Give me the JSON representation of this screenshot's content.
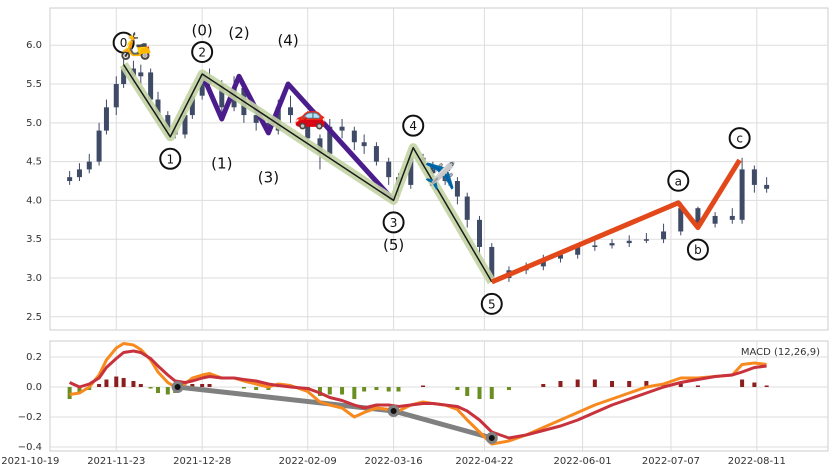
{
  "chart_data": [
    {
      "type": "candlestick",
      "x": [
        "2021-11-04",
        "2021-11-08",
        "2021-11-12",
        "2021-11-16",
        "2021-11-19",
        "2021-11-23",
        "2021-11-26",
        "2021-11-30",
        "2021-12-03",
        "2021-12-07",
        "2021-12-10",
        "2021-12-14",
        "2021-12-17",
        "2021-12-21",
        "2021-12-24",
        "2021-12-28",
        "2021-12-31",
        "2022-01-05",
        "2022-01-10",
        "2022-01-14",
        "2022-01-19",
        "2022-01-24",
        "2022-01-28",
        "2022-02-02",
        "2022-02-09",
        "2022-02-14",
        "2022-02-18",
        "2022-02-23",
        "2022-02-28",
        "2022-03-04",
        "2022-03-09",
        "2022-03-14",
        "2022-03-18",
        "2022-03-23",
        "2022-03-28",
        "2022-04-01",
        "2022-04-06",
        "2022-04-11",
        "2022-04-15",
        "2022-04-20",
        "2022-04-25",
        "2022-05-02",
        "2022-05-09",
        "2022-05-16",
        "2022-05-23",
        "2022-05-30",
        "2022-06-06",
        "2022-06-13",
        "2022-06-20",
        "2022-06-27",
        "2022-07-04",
        "2022-07-11",
        "2022-07-18",
        "2022-07-25",
        "2022-08-01",
        "2022-08-05",
        "2022-08-10",
        "2022-08-15"
      ],
      "open": [
        4.25,
        4.3,
        4.4,
        4.5,
        4.9,
        5.2,
        5.5,
        5.7,
        5.6,
        5.65,
        5.3,
        5.1,
        4.9,
        4.85,
        5.1,
        5.35,
        5.55,
        5.5,
        5.2,
        5.45,
        5.1,
        5.0,
        4.9,
        5.2,
        5.1,
        4.8,
        4.6,
        4.95,
        4.9,
        4.75,
        4.7,
        4.5,
        4.3,
        4.2,
        4.55,
        4.45,
        4.35,
        4.25,
        4.05,
        3.75,
        3.4,
        3.0,
        3.1,
        3.15,
        3.25,
        3.3,
        3.4,
        3.42,
        3.45,
        3.48,
        3.5,
        3.6,
        3.9,
        3.7,
        3.8,
        3.75,
        4.4,
        4.2
      ],
      "high": [
        4.38,
        4.48,
        4.6,
        5.0,
        5.3,
        5.6,
        5.9,
        5.8,
        5.75,
        5.7,
        5.4,
        5.15,
        5.0,
        5.15,
        5.4,
        5.65,
        5.7,
        5.55,
        5.6,
        5.5,
        5.15,
        5.05,
        5.3,
        5.35,
        5.15,
        4.85,
        5.05,
        5.05,
        4.95,
        4.85,
        4.75,
        4.55,
        4.35,
        4.65,
        4.6,
        4.5,
        4.4,
        4.3,
        4.1,
        3.8,
        3.45,
        3.15,
        3.2,
        3.3,
        3.35,
        3.45,
        3.48,
        3.5,
        3.55,
        3.58,
        3.7,
        3.98,
        3.92,
        3.85,
        3.9,
        4.55,
        4.45,
        4.3
      ],
      "low": [
        4.2,
        4.25,
        4.35,
        4.45,
        4.85,
        5.1,
        5.45,
        5.5,
        5.5,
        5.25,
        5.0,
        4.85,
        4.8,
        4.8,
        5.05,
        5.3,
        5.45,
        5.05,
        5.15,
        5.0,
        4.9,
        4.85,
        4.85,
        5.0,
        4.7,
        4.4,
        4.55,
        4.8,
        4.65,
        4.6,
        4.45,
        4.2,
        4.05,
        4.15,
        4.4,
        4.3,
        4.2,
        3.95,
        3.65,
        3.3,
        2.95,
        2.95,
        3.05,
        3.1,
        3.2,
        3.25,
        3.35,
        3.38,
        3.4,
        3.45,
        3.45,
        3.55,
        3.65,
        3.65,
        3.7,
        3.7,
        4.1,
        4.1
      ],
      "close": [
        4.3,
        4.4,
        4.5,
        4.9,
        5.2,
        5.5,
        5.7,
        5.6,
        5.65,
        5.3,
        5.1,
        4.9,
        4.85,
        5.1,
        5.35,
        5.55,
        5.5,
        5.2,
        5.45,
        5.1,
        5.0,
        4.9,
        5.2,
        5.1,
        4.8,
        4.6,
        4.95,
        4.9,
        4.75,
        4.7,
        4.5,
        4.3,
        4.2,
        4.55,
        4.45,
        4.35,
        4.25,
        4.05,
        3.75,
        3.4,
        3.0,
        3.1,
        3.15,
        3.25,
        3.3,
        3.4,
        3.42,
        3.45,
        3.48,
        3.5,
        3.6,
        3.9,
        3.7,
        3.8,
        3.75,
        4.4,
        4.2,
        4.15
      ],
      "color": "#3f4a66",
      "ylim": [
        2.33,
        6.48
      ],
      "yticks": [
        2.5,
        {
          "value": 3.0,
          "label": "3.0"
        },
        3.5,
        {
          "value": 4.0,
          "label": "4.0"
        },
        4.5,
        {
          "value": 5.0,
          "label": "5.0"
        },
        5.5,
        {
          "value": 6.0,
          "label": "6.0"
        }
      ],
      "grid": true,
      "waves": [
        {
          "color": "#4b1d8c",
          "x": [
            "2021-12-28",
            "2022-01-05",
            "2022-01-12",
            "2022-01-24",
            "2022-02-01",
            "2022-03-16"
          ],
          "y": [
            5.63,
            5.05,
            5.6,
            4.87,
            5.5,
            4.0
          ],
          "labels": [
            "(0)",
            "(1)",
            "(2)",
            "(3)",
            "(4)",
            "(5)"
          ],
          "circled": false
        },
        {
          "color": "#1a1a1a",
          "halo": "#c3d3a4",
          "x": [
            "2021-11-26",
            "2021-12-15",
            "2021-12-28",
            "2022-03-16",
            "2022-03-24",
            "2022-04-25"
          ],
          "y": [
            5.75,
            4.82,
            5.63,
            4.0,
            4.68,
            2.95
          ],
          "labels": [
            "0",
            "1",
            "2",
            "3",
            "4",
            "5"
          ],
          "circled": true
        },
        {
          "color": "#e2481a",
          "x": [
            "2022-04-25",
            "2022-07-10",
            "2022-07-18",
            "2022-08-04"
          ],
          "y": [
            2.95,
            3.97,
            3.65,
            4.52
          ],
          "labels": [
            null,
            "a",
            "b",
            "c"
          ],
          "circled": true
        }
      ],
      "annotations": [
        {
          "text": "🛵",
          "x": "2021-12-01",
          "y": 5.98
        },
        {
          "text": "🚗",
          "x": "2022-02-10",
          "y": 5.08
        },
        {
          "text": "✈️",
          "x": "2022-04-04",
          "y": 4.3
        }
      ]
    },
    {
      "type": "macd",
      "title": "MACD (12,26,9)",
      "series": [
        {
          "color": "#f7891f",
          "values": [
            -0.05,
            -0.04,
            0.0,
            0.08,
            0.18,
            0.26,
            0.29,
            0.28,
            0.25,
            0.18,
            0.1,
            0.03,
            0.0,
            0.02,
            0.06,
            0.08,
            0.09,
            0.06,
            0.06,
            0.04,
            0.02,
            0.0,
            0.02,
            0.01,
            -0.03,
            -0.1,
            -0.12,
            -0.14,
            -0.2,
            -0.17,
            -0.14,
            -0.15,
            -0.16,
            -0.12,
            -0.1,
            -0.11,
            -0.12,
            -0.15,
            -0.22,
            -0.3,
            -0.38,
            -0.36,
            -0.32,
            -0.27,
            -0.22,
            -0.17,
            -0.12,
            -0.08,
            -0.04,
            0.0,
            0.02,
            0.06,
            0.06,
            0.07,
            0.08,
            0.15,
            0.16,
            0.15
          ]
        },
        {
          "color": "#c8323c",
          "values": [
            0.03,
            0.0,
            0.02,
            0.06,
            0.13,
            0.19,
            0.23,
            0.24,
            0.23,
            0.19,
            0.14,
            0.08,
            0.04,
            0.03,
            0.04,
            0.06,
            0.07,
            0.06,
            0.06,
            0.05,
            0.04,
            0.02,
            0.01,
            0.0,
            -0.01,
            -0.04,
            -0.07,
            -0.09,
            -0.12,
            -0.14,
            -0.12,
            -0.12,
            -0.13,
            -0.12,
            -0.11,
            -0.11,
            -0.12,
            -0.13,
            -0.16,
            -0.22,
            -0.3,
            -0.34,
            -0.32,
            -0.29,
            -0.26,
            -0.22,
            -0.17,
            -0.12,
            -0.08,
            -0.04,
            0.0,
            0.03,
            0.05,
            0.07,
            0.08,
            0.1,
            0.13,
            0.14
          ]
        }
      ],
      "histogram": {
        "pos_color": "#8b1e1e",
        "neg_color": "#6b8e23",
        "values": [
          -0.08,
          -0.04,
          -0.02,
          0.02,
          0.05,
          0.07,
          0.06,
          0.04,
          0.02,
          -0.01,
          -0.04,
          -0.05,
          -0.04,
          -0.01,
          0.02,
          0.02,
          0.02,
          0.0,
          0.0,
          -0.01,
          -0.02,
          -0.02,
          0.01,
          0.01,
          -0.02,
          -0.06,
          -0.05,
          -0.05,
          -0.08,
          -0.03,
          -0.02,
          -0.03,
          -0.03,
          0.0,
          0.01,
          0.0,
          0.0,
          -0.02,
          -0.06,
          -0.08,
          -0.08,
          -0.02,
          0.0,
          0.02,
          0.04,
          0.05,
          0.05,
          0.04,
          0.04,
          0.04,
          0.02,
          0.03,
          0.01,
          0.0,
          0.0,
          0.05,
          0.03,
          0.01
        ]
      },
      "trendline": {
        "color": "#808080",
        "x": [
          "2021-12-18",
          "2022-03-16",
          "2022-04-25"
        ],
        "y": [
          0.0,
          -0.16,
          -0.34
        ]
      },
      "ylim": [
        -0.427,
        0.307
      ],
      "yticks": [
        {
          "value": -0.4,
          "label": "−0.4"
        },
        {
          "value": -0.2,
          "label": "−0.2"
        },
        {
          "value": 0.0,
          "label": "0.0"
        },
        0.2
      ],
      "xlim": [
        "2021-10-27",
        "2022-09-09"
      ],
      "xticks": [
        "2021-10-19",
        "2021-11-23",
        "2021-12-28",
        "2022-02-09",
        "2022-03-16",
        "2022-04-22",
        "2022-06-01",
        "2022-07-07",
        "2022-08-11"
      ],
      "grid": true
    }
  ]
}
